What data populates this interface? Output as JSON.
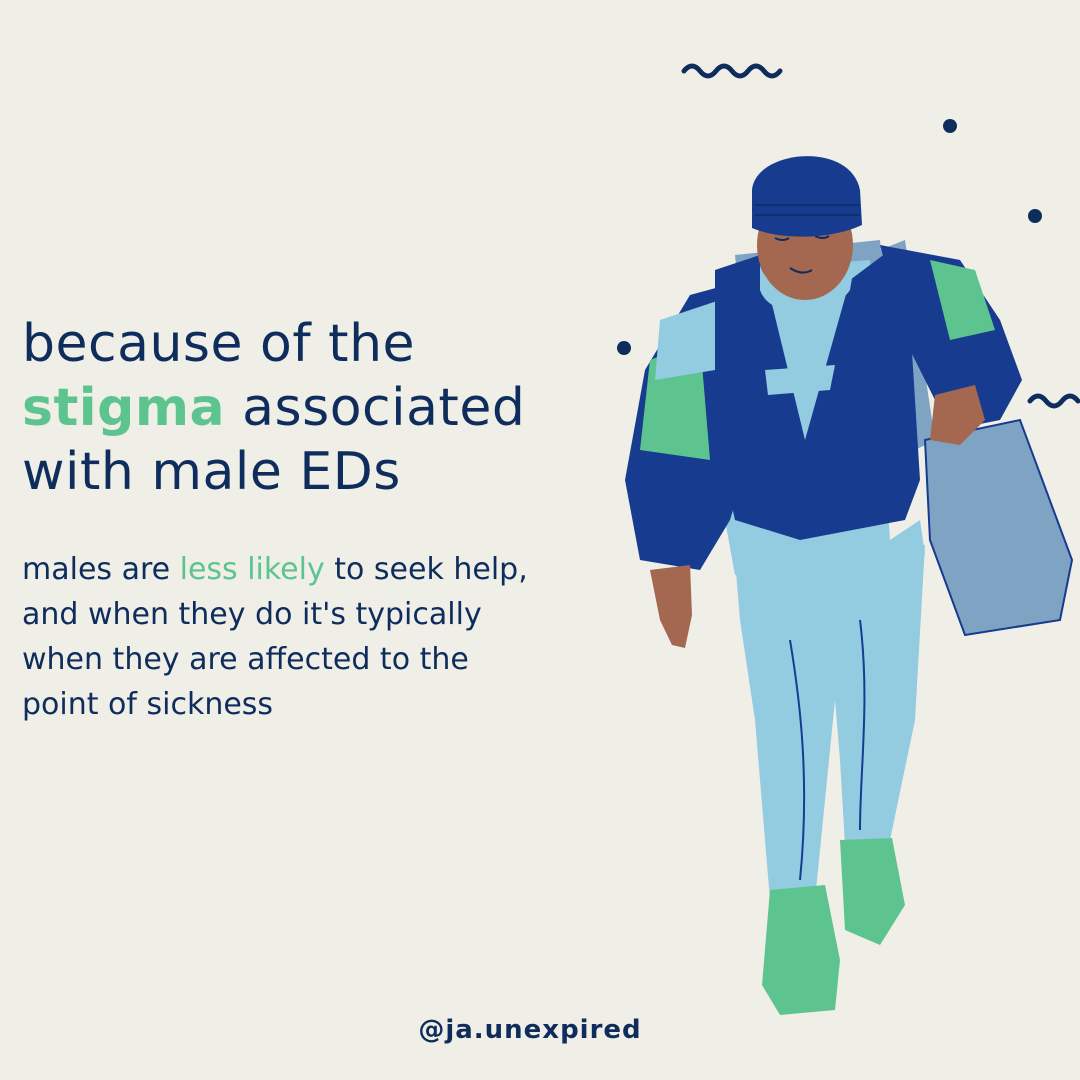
{
  "headline": {
    "line1": "because of  the",
    "accent_word": "stigma",
    "line2_rest": " associated",
    "line3": "with male EDs"
  },
  "body": {
    "line1_start": "males are ",
    "line1_accent": "less likely",
    "line1_end": " to seek help,",
    "line2": "and when they do it's typically",
    "line3": "when they are affected to the",
    "line4": "point of sickness"
  },
  "handle": "@ja.unexpired",
  "colors": {
    "background": "#efeee7",
    "navy": "#0f2d5c",
    "accent_green": "#5ec48f",
    "royal_blue": "#173b8f",
    "light_blue": "#93cbe0",
    "bag_blue": "#7fa3c3",
    "skin": "#a3684f"
  },
  "decorations": [
    "wavy-line",
    "dot",
    "dot",
    "dot",
    "wavy-line"
  ]
}
